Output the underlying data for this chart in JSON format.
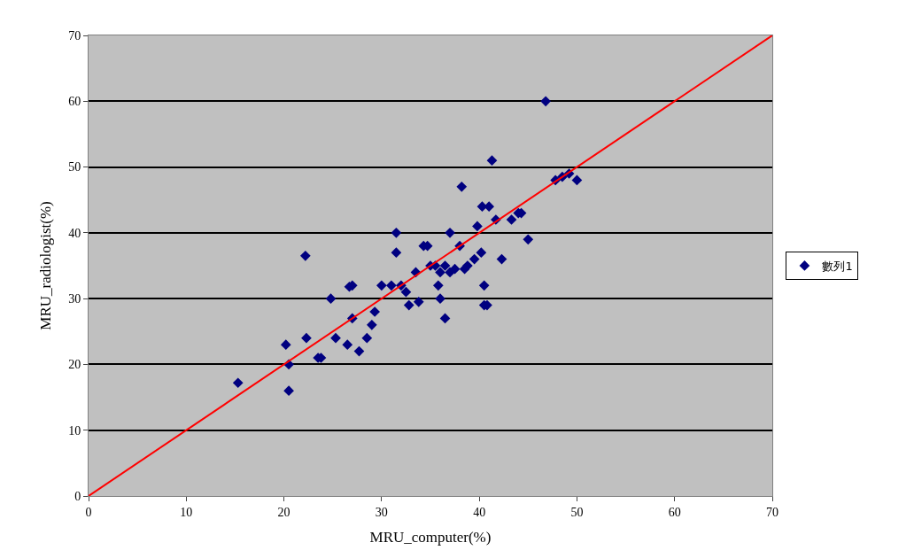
{
  "chart_data": {
    "type": "scatter",
    "xlabel": "MRU_computer(%)",
    "ylabel": "MRU_radiologist(%)",
    "xlim": [
      0,
      70
    ],
    "xticks": [
      0,
      10,
      20,
      30,
      40,
      50,
      60,
      70
    ],
    "ylim": [
      0,
      70
    ],
    "yticks": [
      0,
      10,
      20,
      30,
      40,
      50,
      60,
      70
    ],
    "grid": "y",
    "legend": "right",
    "marker": "diamond",
    "series": [
      {
        "name": "數列1",
        "color": "#000080",
        "x": [
          15.3,
          20.2,
          20.5,
          20.5,
          22.2,
          22.3,
          23.5,
          23.8,
          24.8,
          25.3,
          26.5,
          26.7,
          27,
          27,
          27.7,
          28.5,
          29,
          29.3,
          30,
          31,
          31.5,
          31.5,
          32,
          32.5,
          32.8,
          33.5,
          33.8,
          34.3,
          34.7,
          35,
          35.5,
          35.8,
          36,
          36,
          36.5,
          36.5,
          37,
          37,
          37.5,
          38,
          38.2,
          38.5,
          38.8,
          39.5,
          39.8,
          40.2,
          40.3,
          40.5,
          40.5,
          40.8,
          41,
          41.3,
          41.7,
          42.3,
          43.3,
          44,
          44.3,
          45,
          46.8,
          47.8,
          48.5,
          49.2,
          50
        ],
        "values": [
          17.2,
          23,
          20,
          16,
          36.5,
          24,
          21,
          21,
          30,
          24,
          23,
          31.8,
          32,
          27,
          22,
          24,
          26,
          28,
          32,
          32,
          40,
          37,
          32,
          31,
          29,
          34,
          29.5,
          38,
          38,
          35,
          35,
          32,
          34,
          30,
          35,
          27,
          40,
          34,
          34.5,
          38,
          47,
          34.5,
          35,
          36,
          41,
          37,
          44,
          32,
          29,
          29,
          44,
          51,
          42,
          36,
          42,
          43,
          43,
          39,
          60,
          48,
          48.5,
          49,
          48
        ]
      },
      {
        "type": "line",
        "color": "#ff0000",
        "x": [
          0,
          70
        ],
        "values": [
          0,
          70
        ],
        "marker": "none"
      }
    ]
  }
}
